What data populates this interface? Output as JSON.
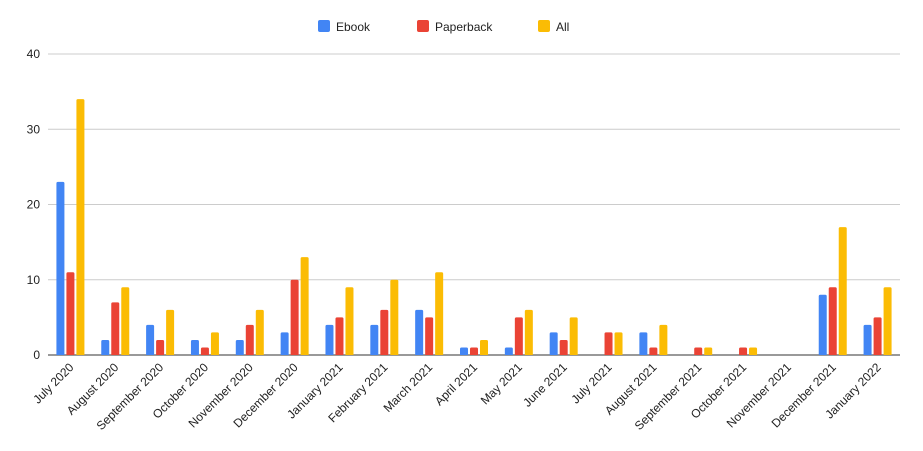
{
  "chart_data": {
    "type": "bar",
    "categories": [
      "July 2020",
      "August 2020",
      "September 2020",
      "October 2020",
      "November 2020",
      "December 2020",
      "January 2021",
      "February 2021",
      "March 2021",
      "April 2021",
      "May 2021",
      "June 2021",
      "July 2021",
      "August 2021",
      "September 2021",
      "October 2021",
      "November 2021",
      "December 2021",
      "January 2022"
    ],
    "series": [
      {
        "name": "Ebook",
        "color": "#4285f4",
        "values": [
          23,
          2,
          4,
          2,
          2,
          3,
          4,
          4,
          6,
          1,
          1,
          3,
          0,
          3,
          0,
          0,
          0,
          8,
          4
        ]
      },
      {
        "name": "Paperback",
        "color": "#ea4335",
        "values": [
          11,
          7,
          2,
          1,
          4,
          10,
          5,
          6,
          5,
          1,
          5,
          2,
          3,
          1,
          1,
          1,
          0,
          9,
          5
        ]
      },
      {
        "name": "All",
        "color": "#fbbc04",
        "values": [
          34,
          9,
          6,
          3,
          6,
          13,
          9,
          10,
          11,
          2,
          6,
          5,
          3,
          4,
          1,
          1,
          0,
          17,
          9
        ]
      }
    ],
    "ylim": [
      0,
      40
    ],
    "yticks": [
      0,
      10,
      20,
      30,
      40
    ],
    "grid": true,
    "legend": "top-center",
    "title": "",
    "xlabel": "",
    "ylabel": ""
  }
}
